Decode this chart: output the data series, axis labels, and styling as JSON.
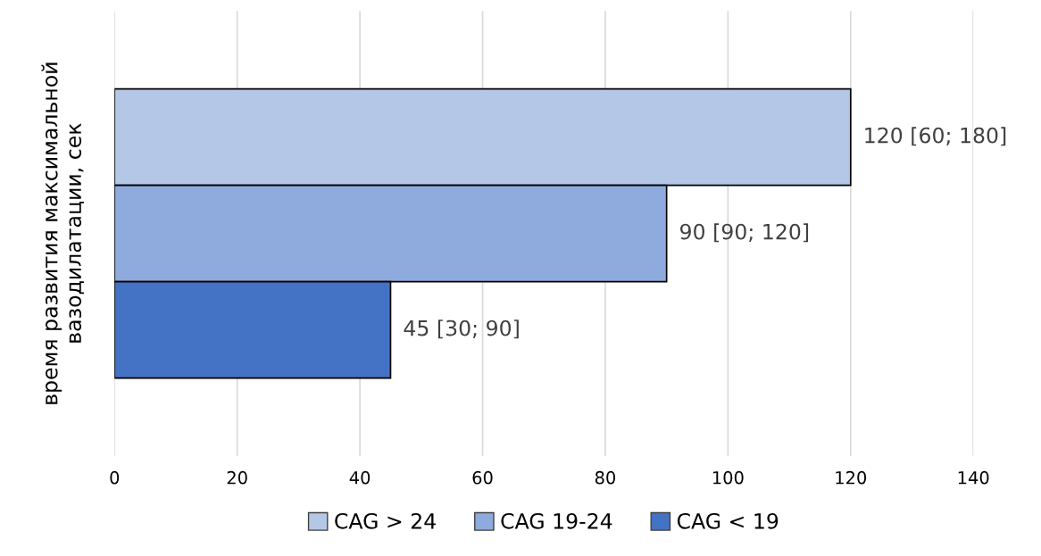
{
  "chart_data": {
    "type": "bar",
    "orientation": "horizontal",
    "ylabel": "время развития максимальной вазодилатации, сек",
    "categories": [
      null
    ],
    "series": [
      {
        "name": "CAG > 24",
        "color": "#b4c7e7",
        "values": [
          120
        ],
        "value_labels": [
          "120 [60; 180]"
        ]
      },
      {
        "name": "CAG 19-24",
        "color": "#8faadc",
        "values": [
          90
        ],
        "value_labels": [
          "90 [90; 120]"
        ]
      },
      {
        "name": "CAG < 19",
        "color": "#4472c4",
        "values": [
          45
        ],
        "value_labels": [
          "45 [30; 90]"
        ]
      }
    ],
    "xlim": [
      0,
      140
    ],
    "xticks": [
      0,
      20,
      40,
      60,
      80,
      100,
      120,
      140
    ],
    "grid": "x",
    "legend": "bottom"
  }
}
